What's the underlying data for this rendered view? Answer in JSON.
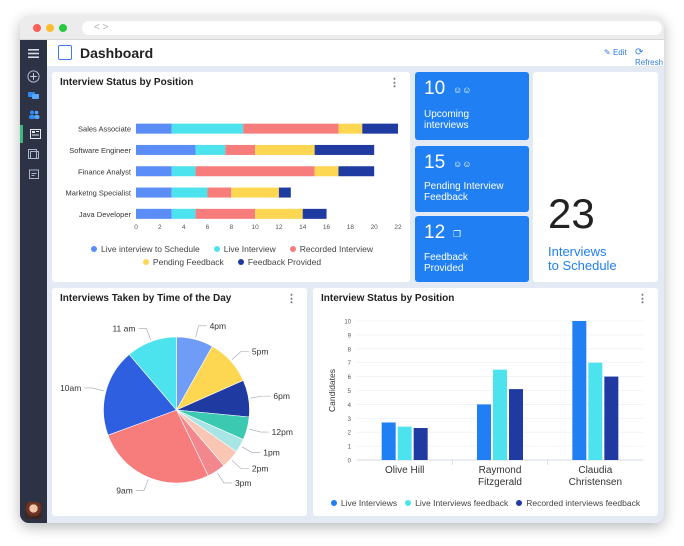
{
  "app": {
    "title": "Dashboard",
    "edit_label": "Edit",
    "refresh_label": "Refresh"
  },
  "colors": {
    "accent": "#1f7ff3",
    "live_interview": "#5a8df5",
    "live_interview_alt": "#4de3ee",
    "recorded": "#f77d7d",
    "pending": "#fdd652",
    "provided": "#1f3aa0"
  },
  "stats": {
    "upcoming": {
      "value": "10",
      "label1": "Upcoming",
      "label2": "interviews",
      "icon": "users-icon"
    },
    "pending": {
      "value": "15",
      "label1": "Pending Interview",
      "label2": "Feedback",
      "icon": "users-icon"
    },
    "provided": {
      "value": "12",
      "label1": "Feedback",
      "label2": "Provided",
      "icon": "copy-icon"
    },
    "to_schedule": {
      "value": "23",
      "label1": "Interviews",
      "label2": "to Schedule"
    }
  },
  "status_chart_title": "Interview Status by Position",
  "time_chart_title": "Interviews Taken by Time of the Day",
  "candidates_chart_title": "Interview Status by Position",
  "chart_data": [
    {
      "type": "bar",
      "orientation": "horizontal",
      "stacked": true,
      "categories": [
        "Sales Associate",
        "Software Engineer",
        "Finance Analyst",
        "Marketng Specialist",
        "Java Developer"
      ],
      "series": [
        {
          "name": "Live interview to Schedule",
          "color": "#5a8df5",
          "values": [
            3,
            5,
            3,
            3,
            3
          ]
        },
        {
          "name": "Live Interview",
          "color": "#4de3ee",
          "values": [
            6,
            2.5,
            2,
            3,
            2
          ]
        },
        {
          "name": "Recorded Interview",
          "color": "#f77d7d",
          "values": [
            8,
            2.5,
            10,
            2,
            5
          ]
        },
        {
          "name": "Pending Feedback",
          "color": "#fdd652",
          "values": [
            2,
            5,
            2,
            4,
            4
          ]
        },
        {
          "name": "Feedback Provided",
          "color": "#1f3aa0",
          "values": [
            3,
            5,
            3,
            1,
            2
          ]
        }
      ],
      "x_ticks": [
        "0",
        "2",
        "4",
        "6",
        "8",
        "10",
        "12",
        "14",
        "16",
        "18",
        "20",
        "22"
      ],
      "xlim": [
        0,
        22
      ],
      "grid": false,
      "legend": "bottom"
    },
    {
      "type": "pie",
      "slices": [
        {
          "label": "4pm",
          "value": 8,
          "color": "#6f9cf6"
        },
        {
          "label": "5pm",
          "value": 10,
          "color": "#fdd652"
        },
        {
          "label": "6pm",
          "value": 8,
          "color": "#1f3aa0"
        },
        {
          "label": "12pm",
          "value": 5,
          "color": "#3bc9b2"
        },
        {
          "label": "1pm",
          "value": 3,
          "color": "#a9e5e4"
        },
        {
          "label": "2pm",
          "value": 4,
          "color": "#f8c6b3"
        },
        {
          "label": "3pm",
          "value": 4,
          "color": "#f2878e"
        },
        {
          "label": "9am",
          "value": 26,
          "color": "#f77d7d"
        },
        {
          "label": "10am",
          "value": 19,
          "color": "#2e5fe0"
        },
        {
          "label": "11 am",
          "value": 11,
          "color": "#4de3ee"
        }
      ],
      "legend": "none"
    },
    {
      "type": "bar",
      "orientation": "vertical",
      "categories": [
        [
          "Olive Hill"
        ],
        [
          "Raymond",
          "Fitzgerald"
        ],
        [
          "Claudia",
          "Christensen"
        ]
      ],
      "series": [
        {
          "name": "Live Interviews",
          "color": "#1f7ff3",
          "values": [
            2.7,
            4.0,
            10.0
          ]
        },
        {
          "name": "Live Interviews feedback",
          "color": "#4de3ee",
          "values": [
            2.4,
            6.5,
            7.0
          ]
        },
        {
          "name": "Recorded interviews feedback",
          "color": "#1f3aa0",
          "values": [
            2.3,
            5.1,
            6.0
          ]
        }
      ],
      "ylabel": "Candidates",
      "ylim": [
        0,
        10
      ],
      "y_ticks": [
        "0",
        "1",
        "2",
        "3",
        "4",
        "5",
        "6",
        "7",
        "8",
        "9",
        "10"
      ],
      "grid": true,
      "legend": "bottom"
    }
  ]
}
